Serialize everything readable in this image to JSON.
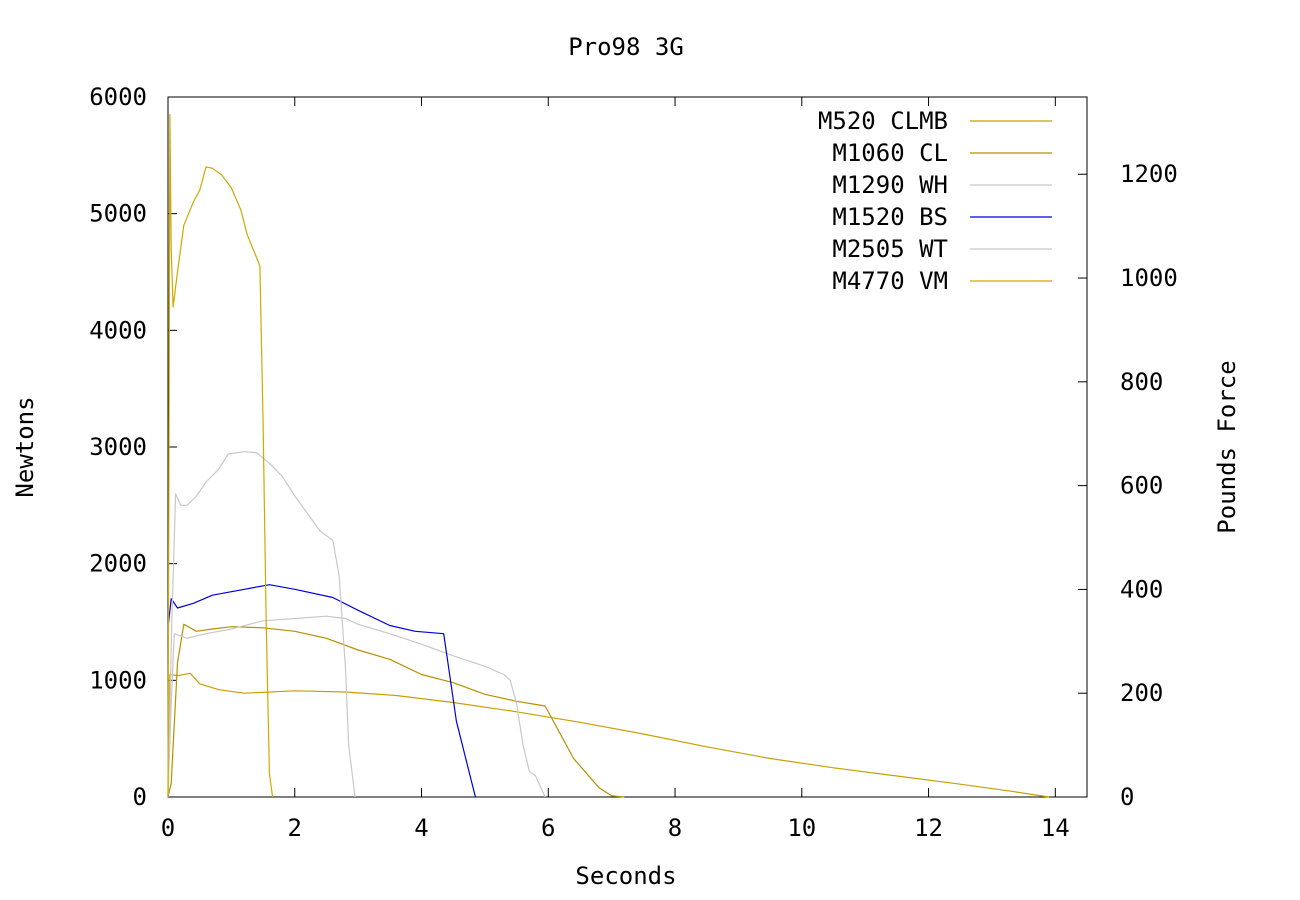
{
  "chart_data": {
    "type": "line",
    "title": "Pro98 3G",
    "xlabel": "Seconds",
    "ylabel": "Newtons",
    "y2label": "Pounds Force",
    "xlim": [
      0,
      14.5
    ],
    "ylim": [
      0,
      6000
    ],
    "y2lim": [
      0,
      1348.85
    ],
    "xticks": [
      0,
      2,
      4,
      6,
      8,
      10,
      12,
      14
    ],
    "xtick_labels": [
      "0",
      "2",
      "4",
      "6",
      "8",
      "10",
      "12",
      "14"
    ],
    "yticks": [
      0,
      1000,
      2000,
      3000,
      4000,
      5000,
      6000
    ],
    "ytick_labels": [
      "0",
      "1000",
      "2000",
      "3000",
      "4000",
      "5000",
      "6000"
    ],
    "y2ticks": [
      0,
      200,
      400,
      600,
      800,
      1000,
      1200
    ],
    "y2tick_labels": [
      "0",
      "200",
      "400",
      "600",
      "800",
      "1000",
      "1200"
    ],
    "grid": false,
    "legend": "top-right",
    "series": [
      {
        "name": "M520 CLMB",
        "color": "#c8a000",
        "points": [
          [
            0,
            0
          ],
          [
            0.03,
            1050
          ],
          [
            0.15,
            1040
          ],
          [
            0.35,
            1060
          ],
          [
            0.5,
            970
          ],
          [
            0.8,
            920
          ],
          [
            1.2,
            890
          ],
          [
            2.0,
            910
          ],
          [
            2.8,
            900
          ],
          [
            3.6,
            870
          ],
          [
            4.5,
            810
          ],
          [
            5.5,
            730
          ],
          [
            6.5,
            640
          ],
          [
            7.5,
            540
          ],
          [
            8.5,
            430
          ],
          [
            9.5,
            330
          ],
          [
            10.5,
            250
          ],
          [
            11.5,
            180
          ],
          [
            12.5,
            110
          ],
          [
            13.3,
            50
          ],
          [
            13.9,
            0
          ]
        ]
      },
      {
        "name": "M1060 CL",
        "color": "#b89000",
        "points": [
          [
            0,
            0
          ],
          [
            0.05,
            120
          ],
          [
            0.15,
            1150
          ],
          [
            0.25,
            1480
          ],
          [
            0.45,
            1420
          ],
          [
            0.7,
            1440
          ],
          [
            1.0,
            1460
          ],
          [
            1.5,
            1450
          ],
          [
            2.0,
            1420
          ],
          [
            2.5,
            1360
          ],
          [
            3.0,
            1260
          ],
          [
            3.5,
            1180
          ],
          [
            4.0,
            1050
          ],
          [
            4.5,
            980
          ],
          [
            5.0,
            880
          ],
          [
            5.5,
            820
          ],
          [
            5.95,
            780
          ],
          [
            6.4,
            330
          ],
          [
            6.8,
            80
          ],
          [
            7.0,
            10
          ],
          [
            7.2,
            0
          ]
        ]
      },
      {
        "name": "M1290 WH",
        "color": "#c8c8c8",
        "points": [
          [
            0,
            0
          ],
          [
            0.05,
            800
          ],
          [
            0.1,
            1400
          ],
          [
            0.3,
            1360
          ],
          [
            0.6,
            1400
          ],
          [
            1.0,
            1440
          ],
          [
            1.5,
            1510
          ],
          [
            2.0,
            1530
          ],
          [
            2.5,
            1550
          ],
          [
            2.8,
            1530
          ],
          [
            3.0,
            1480
          ],
          [
            3.5,
            1400
          ],
          [
            4.0,
            1310
          ],
          [
            4.5,
            1210
          ],
          [
            5.0,
            1120
          ],
          [
            5.3,
            1050
          ],
          [
            5.4,
            1000
          ],
          [
            5.5,
            800
          ],
          [
            5.6,
            450
          ],
          [
            5.7,
            220
          ],
          [
            5.8,
            180
          ],
          [
            5.9,
            60
          ],
          [
            5.95,
            0
          ]
        ]
      },
      {
        "name": "M1520 BS",
        "color": "#0000dd",
        "points": [
          [
            0,
            1450
          ],
          [
            0.05,
            1700
          ],
          [
            0.15,
            1620
          ],
          [
            0.4,
            1660
          ],
          [
            0.7,
            1730
          ],
          [
            1.0,
            1760
          ],
          [
            1.6,
            1820
          ],
          [
            2.0,
            1780
          ],
          [
            2.6,
            1710
          ],
          [
            3.0,
            1600
          ],
          [
            3.5,
            1470
          ],
          [
            3.9,
            1420
          ],
          [
            4.35,
            1400
          ],
          [
            4.55,
            650
          ],
          [
            4.85,
            0
          ]
        ]
      },
      {
        "name": "M2505 WT",
        "color": "#c8c8c8",
        "points": [
          [
            0,
            0
          ],
          [
            0.06,
            1500
          ],
          [
            0.12,
            2600
          ],
          [
            0.2,
            2500
          ],
          [
            0.3,
            2500
          ],
          [
            0.45,
            2580
          ],
          [
            0.6,
            2700
          ],
          [
            0.8,
            2810
          ],
          [
            0.95,
            2940
          ],
          [
            1.2,
            2960
          ],
          [
            1.4,
            2950
          ],
          [
            1.6,
            2860
          ],
          [
            1.8,
            2750
          ],
          [
            2.0,
            2580
          ],
          [
            2.2,
            2430
          ],
          [
            2.4,
            2280
          ],
          [
            2.6,
            2200
          ],
          [
            2.7,
            1900
          ],
          [
            2.8,
            1100
          ],
          [
            2.85,
            450
          ],
          [
            2.95,
            0
          ]
        ]
      },
      {
        "name": "M4770 VM",
        "color": "#d0a800",
        "points": [
          [
            0,
            0
          ],
          [
            0.03,
            5850
          ],
          [
            0.05,
            4700
          ],
          [
            0.08,
            4200
          ],
          [
            0.15,
            4500
          ],
          [
            0.25,
            4900
          ],
          [
            0.4,
            5100
          ],
          [
            0.5,
            5200
          ],
          [
            0.6,
            5400
          ],
          [
            0.7,
            5390
          ],
          [
            0.85,
            5330
          ],
          [
            1.0,
            5220
          ],
          [
            1.15,
            5030
          ],
          [
            1.25,
            4820
          ],
          [
            1.4,
            4620
          ],
          [
            1.45,
            4550
          ],
          [
            1.5,
            3200
          ],
          [
            1.55,
            1500
          ],
          [
            1.6,
            200
          ],
          [
            1.65,
            0
          ]
        ]
      }
    ]
  }
}
